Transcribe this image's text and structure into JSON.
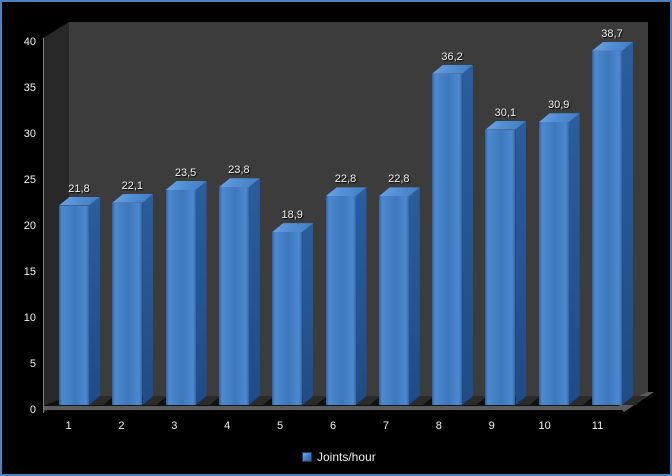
{
  "chart": {
    "legend": {
      "label": "Joints/hour",
      "swatch_color": "#4a84c8"
    },
    "colors": {
      "frame_border": "#4f81bd",
      "background": "#000000",
      "back_wall": "#3c3c3c",
      "side_wall": "#282828",
      "bar_main": "#3d78bc",
      "bar_top": "#5490d6",
      "bar_side": "#1f4c86",
      "text": "#f0f0f0"
    }
  },
  "chart_data": {
    "type": "bar",
    "style": "3d-column",
    "title": "",
    "xlabel": "",
    "ylabel": "",
    "categories": [
      "1",
      "2",
      "3",
      "4",
      "5",
      "6",
      "7",
      "8",
      "9",
      "10",
      "11"
    ],
    "series": [
      {
        "name": "Joints/hour",
        "values": [
          21.8,
          22.1,
          23.5,
          23.8,
          18.9,
          22.8,
          22.8,
          36.2,
          30.1,
          30.9,
          38.7
        ]
      }
    ],
    "value_labels": [
      "21,8",
      "22,1",
      "23,5",
      "23,8",
      "18,9",
      "22,8",
      "22,8",
      "36,2",
      "30,1",
      "30,9",
      "38,7"
    ],
    "ylim": [
      0,
      40
    ],
    "ytick_step": 5,
    "yticks": [
      0,
      5,
      10,
      15,
      20,
      25,
      30,
      35,
      40
    ],
    "grid": false,
    "legend_position": "bottom",
    "value_label_decimal_separator": ","
  }
}
